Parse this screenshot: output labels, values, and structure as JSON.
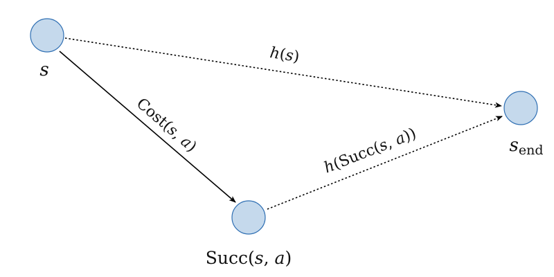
{
  "diagram": {
    "nodes": {
      "s": {
        "var": "s"
      },
      "succ": {
        "fn": "Succ",
        "open": "(",
        "arg1": "s",
        "sep": ", ",
        "arg2": "a",
        "close": ")"
      },
      "send": {
        "var": "s",
        "sub": "end"
      }
    },
    "edges": {
      "cost": {
        "fn": "Cost",
        "open": "(",
        "arg1": "s",
        "sep": ", ",
        "arg2": "a",
        "close": ")"
      },
      "h_s": {
        "fn": "h",
        "open": "(",
        "arg": "s",
        "close": ")"
      },
      "h_succ": {
        "fn": "h",
        "open": "(",
        "inner_fn": "Succ",
        "inner_open": "(",
        "arg1": "s",
        "sep": ", ",
        "arg2": "a",
        "inner_close": ")",
        "close": ")"
      }
    },
    "colors": {
      "node_fill": "#c5d9ec",
      "node_stroke": "#2f6fb3",
      "edge": "#000000"
    }
  }
}
